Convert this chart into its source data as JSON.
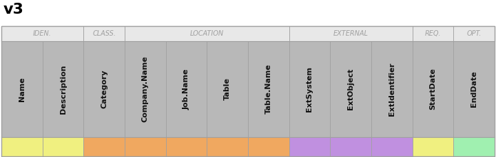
{
  "title": "v3",
  "columns": [
    {
      "label": "Name",
      "cell_color": "#f0f080",
      "header_color": "#c0c0c0"
    },
    {
      "label": "Description",
      "cell_color": "#f0f080",
      "header_color": "#c0c0c0"
    },
    {
      "label": "Category",
      "cell_color": "#f0a860",
      "header_color": "#c0c0c0"
    },
    {
      "label": "Company.Name",
      "cell_color": "#f0a860",
      "header_color": "#c0c0c0"
    },
    {
      "label": "Job.Name",
      "cell_color": "#f0a860",
      "header_color": "#c0c0c0"
    },
    {
      "label": "Table",
      "cell_color": "#f0a860",
      "header_color": "#c0c0c0"
    },
    {
      "label": "Table.Name",
      "cell_color": "#f0a860",
      "header_color": "#c0c0c0"
    },
    {
      "label": "ExtSystem",
      "cell_color": "#c090e0",
      "header_color": "#c0c0c0"
    },
    {
      "label": "ExtObject",
      "cell_color": "#c090e0",
      "header_color": "#c0c0c0"
    },
    {
      "label": "ExtIdentifier",
      "cell_color": "#c090e0",
      "header_color": "#c0c0c0"
    },
    {
      "label": "StartDate",
      "cell_color": "#f0f080",
      "header_color": "#c0c0c0"
    },
    {
      "label": "EndDate",
      "cell_color": "#a0f0b0",
      "header_color": "#c0c0c0"
    }
  ],
  "group_spans": [
    {
      "label": "IDEN.",
      "start": 0,
      "end": 1
    },
    {
      "label": "CLASS.",
      "start": 2,
      "end": 2
    },
    {
      "label": "LOCATION",
      "start": 3,
      "end": 6
    },
    {
      "label": "EXTERNAL",
      "start": 7,
      "end": 9
    },
    {
      "label": "REQ.",
      "start": 10,
      "end": 10
    },
    {
      "label": "OPT.",
      "start": 11,
      "end": 11
    }
  ],
  "header_bg": "#b8b8b8",
  "group_bg": "#e8e8e8",
  "fig_bg": "#ffffff",
  "title_fontsize": 16,
  "group_fontsize": 7,
  "header_fontsize": 8,
  "border_color": "#a0a0a0",
  "group_text_color": "#a0a0a0"
}
